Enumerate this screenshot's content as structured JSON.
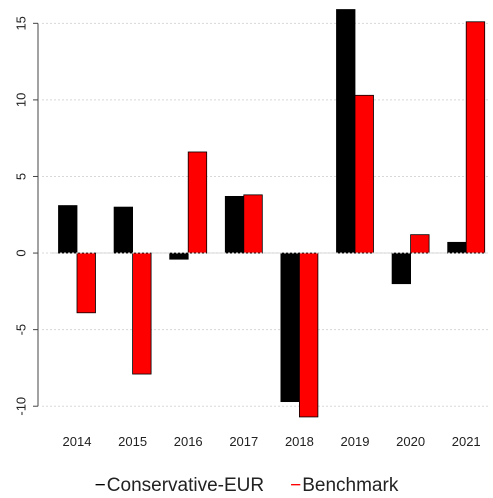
{
  "chart_data": {
    "type": "bar",
    "categories": [
      "2014",
      "2015",
      "2016",
      "2017",
      "2018",
      "2019",
      "2020",
      "2021"
    ],
    "series": [
      {
        "name": "Conservative-EUR",
        "color": "#000000",
        "values": [
          3.1,
          3.0,
          -0.4,
          3.7,
          -9.7,
          15.9,
          -2.0,
          0.7
        ]
      },
      {
        "name": "Benchmark",
        "color": "#ff0000",
        "values": [
          -3.9,
          -7.9,
          6.6,
          3.8,
          -10.7,
          10.3,
          1.2,
          15.1
        ]
      }
    ],
    "ylim": [
      -10.9,
      16
    ],
    "yticks": [
      -10,
      -5,
      0,
      5,
      10,
      15
    ],
    "ytick_labels": [
      "-10",
      "-5",
      "0",
      "5",
      "10",
      "15"
    ],
    "grid": true,
    "legend_position": "bottom"
  }
}
